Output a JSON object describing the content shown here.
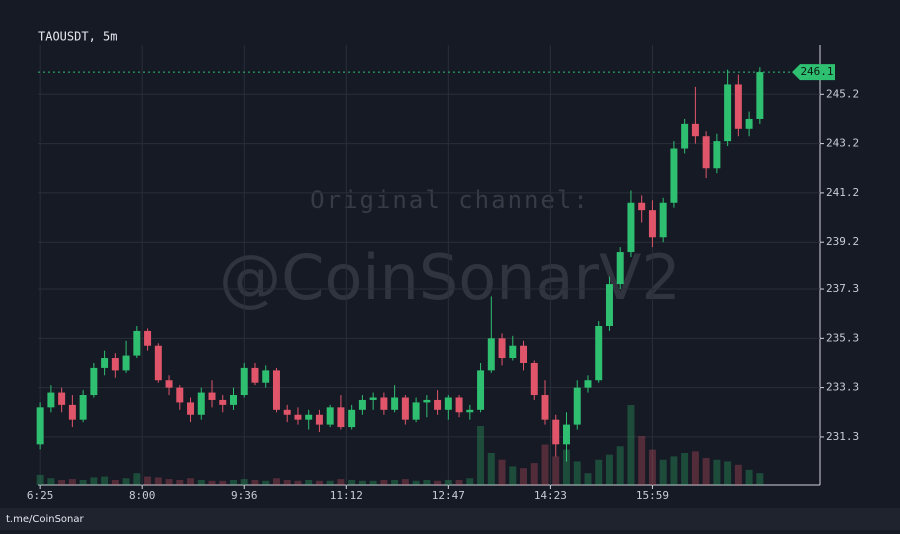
{
  "chart_data": {
    "type": "candlestick",
    "title": "TAOUSDT, 5m",
    "watermark": [
      "Original channel:",
      "@CoinSonarV2"
    ],
    "footer": "t.me/CoinSonar",
    "up_color": "#2fbf71",
    "down_color": "#e05569",
    "grid": true,
    "last_price": 246.1,
    "ylim": [
      229.35,
      247.2
    ],
    "yticks": [
      231.3,
      233.3,
      235.3,
      237.3,
      239.2,
      241.2,
      243.2,
      245.2
    ],
    "xlim": [
      -0.2,
      72.6
    ],
    "xticks": [
      {
        "value": 0,
        "label": "6:25"
      },
      {
        "value": 9.5,
        "label": "8:00"
      },
      {
        "value": 19,
        "label": "9:36"
      },
      {
        "value": 28.5,
        "label": "11:12"
      },
      {
        "value": 38,
        "label": "12:47"
      },
      {
        "value": 47.5,
        "label": "14:23"
      },
      {
        "value": 57,
        "label": "15:59"
      }
    ],
    "ohlc": [
      [
        231.0,
        232.7,
        230.8,
        232.5
      ],
      [
        232.5,
        233.4,
        232.3,
        233.1
      ],
      [
        233.1,
        233.3,
        232.3,
        232.6
      ],
      [
        232.6,
        233.0,
        231.7,
        232.0
      ],
      [
        232.0,
        233.2,
        231.9,
        233.0
      ],
      [
        233.0,
        234.3,
        232.9,
        234.1
      ],
      [
        234.1,
        234.8,
        233.8,
        234.5
      ],
      [
        234.5,
        234.7,
        233.7,
        234.0
      ],
      [
        234.0,
        235.2,
        233.9,
        234.6
      ],
      [
        234.6,
        235.8,
        234.5,
        235.6
      ],
      [
        235.6,
        235.7,
        234.8,
        235.0
      ],
      [
        235.0,
        235.1,
        233.5,
        233.6
      ],
      [
        233.6,
        233.8,
        233.0,
        233.3
      ],
      [
        233.3,
        233.4,
        232.4,
        232.7
      ],
      [
        232.7,
        232.9,
        231.9,
        232.2
      ],
      [
        232.2,
        233.3,
        232.0,
        233.1
      ],
      [
        233.1,
        233.6,
        232.5,
        232.8
      ],
      [
        232.8,
        233.0,
        232.3,
        232.6
      ],
      [
        232.6,
        233.3,
        232.4,
        233.0
      ],
      [
        233.0,
        234.3,
        232.9,
        234.1
      ],
      [
        234.1,
        234.3,
        233.4,
        233.5
      ],
      [
        233.5,
        234.2,
        233.3,
        234.0
      ],
      [
        234.0,
        234.1,
        232.3,
        232.4
      ],
      [
        232.4,
        232.6,
        231.9,
        232.2
      ],
      [
        232.2,
        232.5,
        231.8,
        232.0
      ],
      [
        232.0,
        232.4,
        231.6,
        232.2
      ],
      [
        232.2,
        232.4,
        231.5,
        231.8
      ],
      [
        231.8,
        232.6,
        231.7,
        232.5
      ],
      [
        232.5,
        233.0,
        231.6,
        231.7
      ],
      [
        231.7,
        232.6,
        231.6,
        232.4
      ],
      [
        232.4,
        233.0,
        232.2,
        232.8
      ],
      [
        232.8,
        233.1,
        232.4,
        232.9
      ],
      [
        232.9,
        233.1,
        232.2,
        232.4
      ],
      [
        232.4,
        233.4,
        232.3,
        232.9
      ],
      [
        232.9,
        233.0,
        231.8,
        232.0
      ],
      [
        232.0,
        232.9,
        231.9,
        232.7
      ],
      [
        232.7,
        233.0,
        232.1,
        232.8
      ],
      [
        232.8,
        233.2,
        232.2,
        232.4
      ],
      [
        232.4,
        233.0,
        232.0,
        232.9
      ],
      [
        232.9,
        233.0,
        232.1,
        232.3
      ],
      [
        232.3,
        232.6,
        232.0,
        232.4
      ],
      [
        232.4,
        234.3,
        232.3,
        234.0
      ],
      [
        234.0,
        237.0,
        233.9,
        235.3
      ],
      [
        235.3,
        235.5,
        234.2,
        234.5
      ],
      [
        234.5,
        235.4,
        234.4,
        235.0
      ],
      [
        235.0,
        235.2,
        234.0,
        234.3
      ],
      [
        234.3,
        234.4,
        232.8,
        233.0
      ],
      [
        233.0,
        233.6,
        231.8,
        232.0
      ],
      [
        232.0,
        232.2,
        230.5,
        231.0
      ],
      [
        231.0,
        232.3,
        230.3,
        231.8
      ],
      [
        231.8,
        233.6,
        231.6,
        233.3
      ],
      [
        233.3,
        233.8,
        233.1,
        233.6
      ],
      [
        233.6,
        236.0,
        233.5,
        235.8
      ],
      [
        235.8,
        237.8,
        235.6,
        237.5
      ],
      [
        237.5,
        239.0,
        237.3,
        238.8
      ],
      [
        238.8,
        241.3,
        238.6,
        240.8
      ],
      [
        240.8,
        241.1,
        240.0,
        240.5
      ],
      [
        240.5,
        240.9,
        239.0,
        239.4
      ],
      [
        239.4,
        241.0,
        239.2,
        240.8
      ],
      [
        240.8,
        243.3,
        240.6,
        243.0
      ],
      [
        243.0,
        244.2,
        242.8,
        244.0
      ],
      [
        244.0,
        245.5,
        243.2,
        243.5
      ],
      [
        243.5,
        243.7,
        241.8,
        242.2
      ],
      [
        242.2,
        243.6,
        242.0,
        243.3
      ],
      [
        243.3,
        246.2,
        243.1,
        245.6
      ],
      [
        245.6,
        246.0,
        243.5,
        243.8
      ],
      [
        243.8,
        244.5,
        243.5,
        244.2
      ],
      [
        244.2,
        246.3,
        244.0,
        246.1
      ]
    ],
    "volume": [
      12,
      8,
      6,
      7,
      6,
      9,
      10,
      6,
      8,
      14,
      10,
      9,
      7,
      6,
      8,
      6,
      5,
      5,
      6,
      7,
      6,
      5,
      8,
      6,
      5,
      6,
      5,
      5,
      7,
      6,
      5,
      5,
      6,
      6,
      7,
      5,
      6,
      5,
      6,
      6,
      8,
      70,
      38,
      30,
      22,
      20,
      26,
      48,
      34,
      42,
      28,
      14,
      30,
      36,
      46,
      95,
      58,
      42,
      30,
      34,
      38,
      40,
      32,
      30,
      28,
      24,
      18,
      14
    ]
  }
}
